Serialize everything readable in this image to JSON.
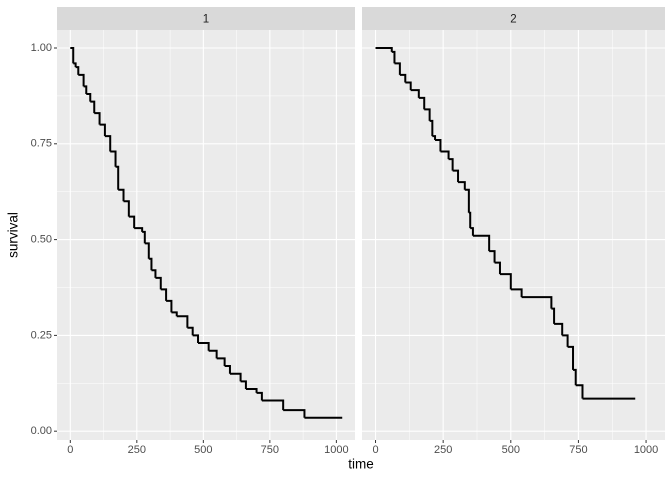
{
  "chart_data": [
    {
      "type": "line",
      "step": true,
      "strip": "1",
      "x_label": "time",
      "y_label": "survival",
      "color": "#000000",
      "grid": true,
      "x": [
        0,
        11,
        20,
        30,
        50,
        60,
        75,
        90,
        110,
        130,
        150,
        170,
        180,
        200,
        220,
        240,
        270,
        280,
        295,
        305,
        320,
        340,
        360,
        380,
        400,
        440,
        460,
        480,
        520,
        550,
        580,
        600,
        640,
        660,
        700,
        720,
        800,
        880,
        1022
      ],
      "values": [
        1.0,
        0.96,
        0.95,
        0.93,
        0.9,
        0.88,
        0.86,
        0.83,
        0.8,
        0.77,
        0.73,
        0.69,
        0.63,
        0.6,
        0.56,
        0.53,
        0.52,
        0.49,
        0.45,
        0.42,
        0.4,
        0.37,
        0.34,
        0.31,
        0.3,
        0.27,
        0.25,
        0.23,
        0.21,
        0.19,
        0.17,
        0.15,
        0.13,
        0.11,
        0.1,
        0.08,
        0.055,
        0.035,
        0.035
      ],
      "xlim": [
        -50,
        1070
      ],
      "ylim": [
        -0.023,
        1.047
      ],
      "xticks": [
        0,
        250,
        500,
        750,
        1000
      ],
      "yticks": [
        {
          "value": 0,
          "label": "0.00"
        },
        {
          "value": 0.25,
          "label": "0.25"
        },
        {
          "value": 0.5,
          "label": "0.50"
        },
        {
          "value": 0.75,
          "label": "0.75"
        },
        {
          "value": 1,
          "label": "1.00"
        }
      ]
    },
    {
      "type": "line",
      "step": true,
      "strip": "2",
      "color": "#000000",
      "grid": true,
      "x": [
        0,
        60,
        70,
        90,
        110,
        130,
        160,
        180,
        200,
        210,
        220,
        240,
        270,
        285,
        305,
        330,
        345,
        350,
        360,
        420,
        440,
        460,
        500,
        540,
        650,
        660,
        690,
        710,
        730,
        740,
        765,
        960
      ],
      "values": [
        1.0,
        0.99,
        0.96,
        0.93,
        0.91,
        0.89,
        0.87,
        0.84,
        0.81,
        0.77,
        0.76,
        0.73,
        0.71,
        0.68,
        0.65,
        0.63,
        0.57,
        0.53,
        0.51,
        0.47,
        0.44,
        0.41,
        0.37,
        0.35,
        0.32,
        0.28,
        0.25,
        0.22,
        0.16,
        0.12,
        0.085,
        0.085
      ],
      "xlim": [
        -50,
        1070
      ],
      "ylim": [
        -0.023,
        1.047
      ],
      "xticks": [
        0,
        250,
        500,
        750,
        1000
      ],
      "yticks": [
        0,
        0.25,
        0.5,
        0.75,
        1
      ]
    }
  ]
}
